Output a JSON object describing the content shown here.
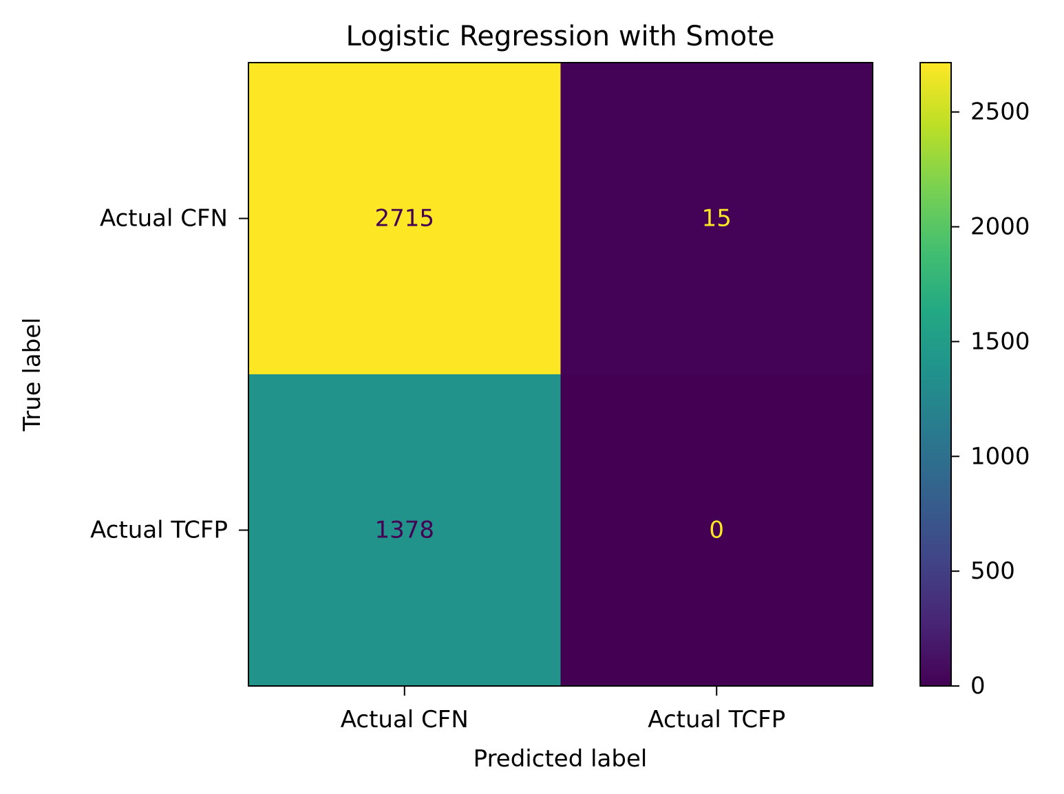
{
  "chart_data": {
    "type": "heatmap",
    "title": "Logistic Regression with Smote",
    "xlabel": "Predicted label",
    "ylabel": "True label",
    "x_categories": [
      "Actual CFN",
      "Actual TCFP"
    ],
    "y_categories": [
      "Actual CFN",
      "Actual TCFP"
    ],
    "values": [
      [
        2715,
        15
      ],
      [
        1378,
        0
      ]
    ],
    "colormap": "viridis",
    "colorbar": {
      "range": [
        0,
        2715
      ],
      "ticks": [
        0,
        500,
        1000,
        1500,
        2000,
        2500
      ],
      "tick_labels": [
        "0",
        "500",
        "1000",
        "1500",
        "2000",
        "2500"
      ]
    },
    "text_colors": {
      "on_light": "#440154",
      "on_dark": "#fde725"
    }
  }
}
